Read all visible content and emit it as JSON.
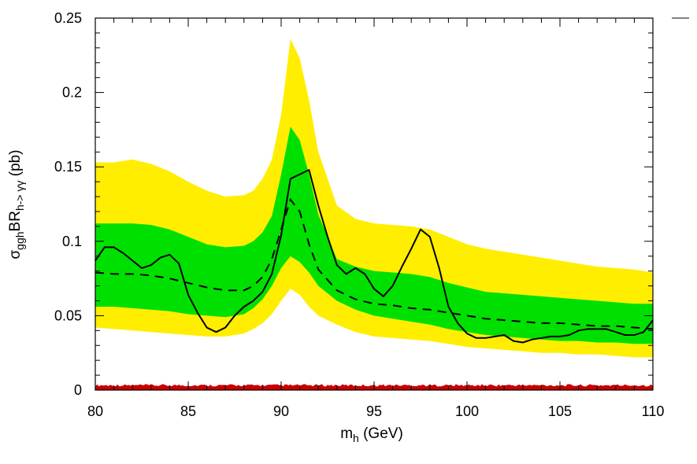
{
  "chart_data": {
    "type": "line",
    "xlabel": {
      "main": "m",
      "sub": "h",
      "rest": " (GeV)"
    },
    "ylabel": {
      "sigma": "σ",
      "sub1": "ggh",
      "br": "BR",
      "sub2": "h-> γγ",
      "unit": " (pb)"
    },
    "xlim": [
      80,
      110
    ],
    "ylim": [
      0,
      0.25
    ],
    "x_ticks": [
      80,
      85,
      90,
      95,
      100,
      105,
      110
    ],
    "x_tick_labels": [
      "80",
      "85",
      "90",
      "95",
      "100",
      "105",
      "110"
    ],
    "y_ticks": [
      0,
      0.05,
      0.1,
      0.15,
      0.2,
      0.25
    ],
    "y_tick_labels": [
      "0",
      "0.05",
      "0.1",
      "0.15",
      "0.2",
      "0.25"
    ],
    "grid": false,
    "colors": {
      "yellow_band": "#ffee00",
      "green_band": "#00e000",
      "red_band": "#c80000",
      "lines": "#000000"
    },
    "x": [
      80,
      81,
      82,
      83,
      84,
      85,
      86,
      87,
      88,
      88.5,
      89,
      89.5,
      90,
      90.5,
      91,
      91.5,
      92,
      93,
      94,
      95,
      96,
      97,
      98,
      99,
      100,
      101,
      102,
      103,
      104,
      105,
      106,
      107,
      108,
      109,
      110
    ],
    "band_2sigma": {
      "low": [
        0.042,
        0.041,
        0.04,
        0.039,
        0.038,
        0.037,
        0.036,
        0.036,
        0.038,
        0.041,
        0.045,
        0.051,
        0.06,
        0.068,
        0.064,
        0.056,
        0.05,
        0.044,
        0.039,
        0.036,
        0.035,
        0.034,
        0.033,
        0.031,
        0.029,
        0.028,
        0.027,
        0.026,
        0.025,
        0.025,
        0.024,
        0.024,
        0.023,
        0.022,
        0.022
      ],
      "high": [
        0.153,
        0.153,
        0.155,
        0.152,
        0.147,
        0.14,
        0.134,
        0.13,
        0.131,
        0.134,
        0.142,
        0.155,
        0.185,
        0.236,
        0.223,
        0.195,
        0.16,
        0.124,
        0.115,
        0.112,
        0.111,
        0.11,
        0.108,
        0.103,
        0.098,
        0.095,
        0.093,
        0.091,
        0.089,
        0.087,
        0.085,
        0.083,
        0.082,
        0.081,
        0.079
      ]
    },
    "band_1sigma": {
      "low": [
        0.056,
        0.056,
        0.055,
        0.054,
        0.053,
        0.051,
        0.05,
        0.049,
        0.051,
        0.055,
        0.061,
        0.07,
        0.082,
        0.09,
        0.086,
        0.079,
        0.07,
        0.06,
        0.054,
        0.05,
        0.048,
        0.046,
        0.044,
        0.041,
        0.039,
        0.037,
        0.036,
        0.035,
        0.034,
        0.033,
        0.033,
        0.032,
        0.032,
        0.031,
        0.031
      ],
      "high": [
        0.112,
        0.112,
        0.112,
        0.111,
        0.108,
        0.103,
        0.098,
        0.096,
        0.097,
        0.1,
        0.106,
        0.117,
        0.145,
        0.177,
        0.168,
        0.145,
        0.118,
        0.088,
        0.083,
        0.08,
        0.079,
        0.078,
        0.076,
        0.072,
        0.069,
        0.066,
        0.065,
        0.064,
        0.063,
        0.062,
        0.061,
        0.06,
        0.059,
        0.058,
        0.058
      ]
    },
    "series": [
      {
        "style": "dashed",
        "x": [
          80,
          81,
          82,
          83,
          84,
          85,
          86,
          87,
          88,
          88.5,
          89,
          89.5,
          90,
          90.5,
          91,
          91.5,
          92,
          93,
          94,
          95,
          96,
          97,
          98,
          99,
          100,
          101,
          102,
          103,
          104,
          105,
          106,
          107,
          108,
          109,
          110
        ],
        "values": [
          0.079,
          0.078,
          0.078,
          0.077,
          0.075,
          0.072,
          0.069,
          0.067,
          0.067,
          0.07,
          0.076,
          0.088,
          0.108,
          0.128,
          0.12,
          0.098,
          0.081,
          0.067,
          0.061,
          0.058,
          0.057,
          0.055,
          0.054,
          0.052,
          0.05,
          0.048,
          0.047,
          0.046,
          0.045,
          0.045,
          0.044,
          0.043,
          0.043,
          0.042,
          0.041
        ]
      },
      {
        "style": "solid",
        "x": [
          80,
          80.5,
          81,
          81.5,
          82,
          82.5,
          83,
          83.5,
          84,
          84.5,
          85,
          85.5,
          86,
          86.5,
          87,
          87.5,
          88,
          88.5,
          89,
          89.5,
          90,
          90.5,
          91,
          91.5,
          92,
          92.5,
          93,
          93.5,
          94,
          94.5,
          95,
          95.5,
          96,
          96.5,
          97,
          97.5,
          98,
          98.5,
          99,
          99.5,
          100,
          100.5,
          101,
          101.5,
          102,
          102.5,
          103,
          103.5,
          104,
          104.5,
          105,
          105.5,
          106,
          106.5,
          107,
          107.5,
          108,
          108.5,
          109,
          109.5,
          110
        ],
        "values": [
          0.087,
          0.096,
          0.096,
          0.092,
          0.087,
          0.082,
          0.084,
          0.089,
          0.091,
          0.085,
          0.064,
          0.052,
          0.042,
          0.039,
          0.042,
          0.05,
          0.056,
          0.06,
          0.066,
          0.078,
          0.104,
          0.142,
          0.145,
          0.148,
          0.124,
          0.103,
          0.084,
          0.078,
          0.082,
          0.078,
          0.068,
          0.063,
          0.07,
          0.083,
          0.095,
          0.108,
          0.103,
          0.082,
          0.056,
          0.045,
          0.038,
          0.035,
          0.035,
          0.036,
          0.037,
          0.033,
          0.032,
          0.034,
          0.035,
          0.036,
          0.036,
          0.037,
          0.04,
          0.041,
          0.041,
          0.041,
          0.039,
          0.037,
          0.037,
          0.039,
          0.047
        ]
      }
    ],
    "band_near_zero": {
      "low": 0.0,
      "high": 0.004
    }
  }
}
